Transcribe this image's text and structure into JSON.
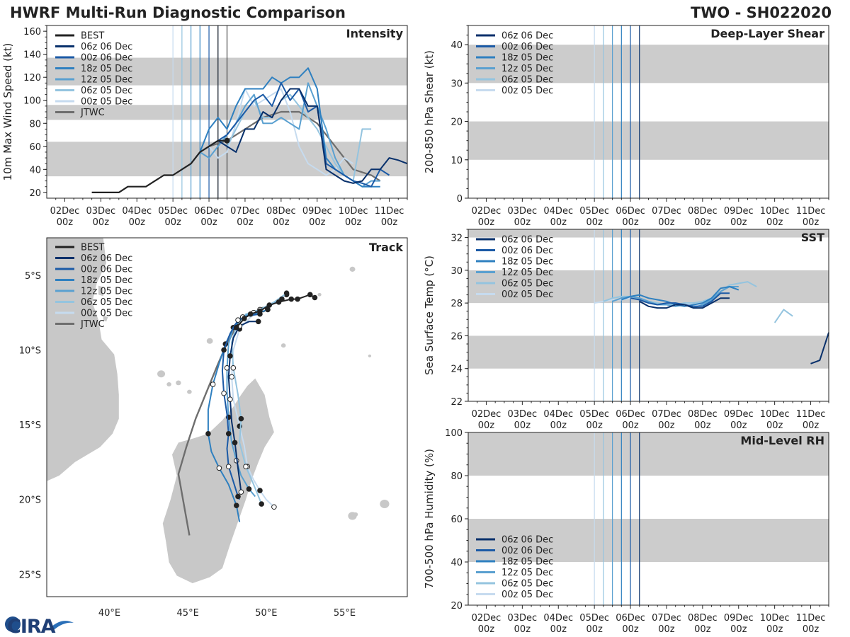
{
  "header": {
    "title": "HWRF Multi-Run Diagnostic Comparison",
    "storm": "TWO - SH022020"
  },
  "logo": {
    "text": "CIRA"
  },
  "colors": {
    "BEST": "#222222",
    "06z 06 Dec": "#08306b",
    "00z 06 Dec": "#1b5aa6",
    "18z 05 Dec": "#2f80c0",
    "12z 05 Dec": "#5aa0d0",
    "06z 05 Dec": "#94c4df",
    "00z 05 Dec": "#c6dbef",
    "JTWC": "#6e6e6e",
    "band": "#cccccc"
  },
  "date_ticks": [
    "02Dec",
    "03Dec",
    "04Dec",
    "05Dec",
    "06Dec",
    "07Dec",
    "08Dec",
    "09Dec",
    "10Dec",
    "11Dec"
  ],
  "date_ticks_sub": "00z",
  "run_lines": [
    {
      "name": "00z 05 Dec",
      "day": 5.0
    },
    {
      "name": "06z 05 Dec",
      "day": 5.25
    },
    {
      "name": "12z 05 Dec",
      "day": 5.5
    },
    {
      "name": "18z 05 Dec",
      "day": 5.75
    },
    {
      "name": "00z 06 Dec",
      "day": 6.0
    },
    {
      "name": "06z 06 Dec",
      "day": 6.25
    }
  ],
  "chart_data": [
    {
      "id": "intensity",
      "type": "line",
      "title": "Intensity",
      "ylabel": "10m Max Wind Speed (kt)",
      "xlim": [
        1.5,
        11.5
      ],
      "ylim": [
        15,
        165
      ],
      "yticks": [
        20,
        40,
        60,
        80,
        100,
        120,
        140,
        160
      ],
      "bands": [
        [
          34,
          64
        ],
        [
          83,
          96
        ],
        [
          113,
          137
        ]
      ],
      "analysis_lines": [
        6.25,
        6.5
      ],
      "legend": [
        "BEST",
        "06z 06 Dec",
        "00z 06 Dec",
        "18z 05 Dec",
        "12z 05 Dec",
        "06z 05 Dec",
        "00z 05 Dec",
        "JTWC"
      ],
      "series": [
        {
          "name": "BEST",
          "x": [
            2.75,
            3.0,
            3.25,
            3.5,
            3.75,
            4.0,
            4.25,
            4.5,
            4.75,
            5.0,
            5.25,
            5.5,
            5.75,
            6.0,
            6.25,
            6.5
          ],
          "y": [
            20,
            20,
            20,
            20,
            25,
            25,
            25,
            30,
            35,
            35,
            40,
            45,
            55,
            60,
            65,
            65
          ],
          "markers": [
            6.5
          ]
        },
        {
          "name": "JTWC",
          "x": [
            6.0,
            6.5,
            7.0,
            7.5,
            8.0,
            8.5,
            9.0,
            9.5,
            10.0,
            10.5,
            10.75
          ],
          "y": [
            60,
            65,
            75,
            85,
            90,
            90,
            80,
            60,
            40,
            35,
            30
          ]
        },
        {
          "name": "00z 05 Dec",
          "x": [
            5.0,
            5.25,
            5.5,
            5.75,
            6.0,
            6.25,
            6.5,
            6.75,
            7.0,
            7.25,
            7.5,
            7.75,
            8.0,
            8.25,
            8.5,
            8.75,
            9.0,
            9.25,
            9.5,
            9.75,
            10.0
          ],
          "y": [
            35,
            40,
            45,
            55,
            60,
            50,
            55,
            80,
            110,
            95,
            100,
            105,
            110,
            90,
            60,
            45,
            40,
            35,
            40,
            50,
            45
          ]
        },
        {
          "name": "06z 05 Dec",
          "x": [
            5.25,
            5.5,
            5.75,
            6.0,
            6.25,
            6.5,
            6.75,
            7.0,
            7.25,
            7.5,
            7.75,
            8.0,
            8.25,
            8.5,
            8.75,
            9.0,
            9.25,
            9.5,
            9.75,
            10.0,
            10.25,
            10.5
          ],
          "y": [
            40,
            45,
            55,
            60,
            65,
            60,
            75,
            90,
            100,
            85,
            85,
            100,
            105,
            95,
            85,
            75,
            60,
            45,
            35,
            30,
            75,
            75
          ]
        },
        {
          "name": "12z 05 Dec",
          "x": [
            5.5,
            5.75,
            6.0,
            6.25,
            6.5,
            6.75,
            7.0,
            7.25,
            7.5,
            7.75,
            8.0,
            8.25,
            8.5,
            8.75,
            9.0,
            9.25,
            9.5,
            9.75,
            10.0,
            10.25,
            10.5,
            10.75
          ],
          "y": [
            45,
            55,
            50,
            60,
            70,
            80,
            95,
            105,
            80,
            80,
            85,
            80,
            75,
            115,
            95,
            75,
            50,
            35,
            30,
            25,
            30,
            30
          ]
        },
        {
          "name": "18z 05 Dec",
          "x": [
            5.75,
            6.0,
            6.25,
            6.5,
            6.75,
            7.0,
            7.25,
            7.5,
            7.75,
            8.0,
            8.25,
            8.5,
            8.75,
            9.0,
            9.25,
            9.5,
            9.75,
            10.0,
            10.25,
            10.5,
            10.75
          ],
          "y": [
            55,
            75,
            85,
            75,
            95,
            110,
            110,
            110,
            120,
            115,
            120,
            120,
            128,
            110,
            50,
            40,
            35,
            30,
            25,
            25,
            25
          ]
        },
        {
          "name": "00z 06 Dec",
          "x": [
            6.0,
            6.25,
            6.5,
            6.75,
            7.0,
            7.25,
            7.5,
            7.75,
            8.0,
            8.25,
            8.5,
            8.75,
            9.0,
            9.25,
            9.5,
            9.75,
            10.0,
            10.25,
            10.5,
            10.75,
            11.0
          ],
          "y": [
            60,
            65,
            70,
            80,
            90,
            100,
            105,
            95,
            115,
            100,
            110,
            90,
            95,
            45,
            40,
            35,
            30,
            28,
            25,
            40,
            35
          ]
        },
        {
          "name": "06z 06 Dec",
          "x": [
            6.25,
            6.5,
            6.75,
            7.0,
            7.25,
            7.5,
            7.75,
            8.0,
            8.25,
            8.5,
            8.75,
            9.0,
            9.25,
            9.5,
            9.75,
            10.0,
            10.25,
            10.5,
            10.75,
            11.0,
            11.25,
            11.5
          ],
          "y": [
            65,
            60,
            55,
            75,
            75,
            90,
            85,
            100,
            110,
            110,
            95,
            95,
            40,
            35,
            30,
            28,
            30,
            40,
            40,
            50,
            48,
            45
          ]
        }
      ]
    },
    {
      "id": "shear",
      "type": "line",
      "title": "Deep-Layer Shear",
      "ylabel": "200-850 hPa Shear (kt)",
      "xlim": [
        1.5,
        11.5
      ],
      "ylim": [
        0,
        45
      ],
      "yticks": [
        0,
        10,
        20,
        30,
        40
      ],
      "bands": [
        [
          10,
          20
        ],
        [
          30,
          40
        ]
      ],
      "legend": [
        "06z 06 Dec",
        "00z 06 Dec",
        "18z 05 Dec",
        "12z 05 Dec",
        "06z 05 Dec",
        "00z 05 Dec"
      ],
      "series": []
    },
    {
      "id": "sst",
      "type": "line",
      "title": "SST",
      "ylabel": "Sea Surface Temp (°C)",
      "xlim": [
        1.5,
        11.5
      ],
      "ylim": [
        22,
        32.5
      ],
      "yticks": [
        22,
        24,
        26,
        28,
        30,
        32
      ],
      "bands": [
        [
          24,
          26
        ],
        [
          28,
          30
        ],
        [
          32,
          32.5
        ]
      ],
      "legend": [
        "06z 06 Dec",
        "00z 06 Dec",
        "18z 05 Dec",
        "12z 05 Dec",
        "06z 05 Dec",
        "00z 05 Dec"
      ],
      "series": [
        {
          "name": "00z 05 Dec",
          "x": [
            5.0,
            5.25,
            5.5,
            5.75,
            6.0,
            6.25,
            6.5,
            6.75,
            7.0,
            7.25,
            7.5,
            7.75,
            8.0
          ],
          "y": [
            28.0,
            28.1,
            28.2,
            28.2,
            28.3,
            28.2,
            28.0,
            27.9,
            27.9,
            27.8,
            27.9,
            27.9,
            27.9
          ]
        },
        {
          "name": "06z 05 Dec",
          "x": [
            5.25,
            5.5,
            5.75,
            6.0,
            6.25,
            6.5,
            6.75,
            7.0,
            7.25,
            7.5,
            7.75,
            8.0,
            8.25,
            8.5,
            8.75,
            9.0,
            9.25,
            9.5,
            9.75,
            10.0,
            10.25,
            10.5
          ],
          "y": [
            28.1,
            28.3,
            28.4,
            28.4,
            28.3,
            28.1,
            28.0,
            27.9,
            27.9,
            28.0,
            28.0,
            28.1,
            28.3,
            28.7,
            29.1,
            29.2,
            29.3,
            29.0,
            null,
            26.8,
            27.6,
            27.2
          ]
        },
        {
          "name": "12z 05 Dec",
          "x": [
            5.5,
            5.75,
            6.0,
            6.25,
            6.5,
            6.75,
            7.0,
            7.25,
            7.5,
            7.75,
            8.0,
            8.25,
            8.5,
            8.75,
            9.0
          ],
          "y": [
            28.1,
            28.3,
            28.4,
            28.3,
            28.1,
            27.9,
            27.9,
            27.8,
            27.9,
            27.7,
            27.9,
            28.2,
            28.7,
            29.0,
            29.0
          ]
        },
        {
          "name": "18z 05 Dec",
          "x": [
            5.75,
            6.0,
            6.25,
            6.5,
            6.75,
            7.0,
            7.25,
            7.5,
            7.75,
            8.0,
            8.25,
            8.5,
            8.75,
            9.0
          ],
          "y": [
            28.2,
            28.4,
            28.5,
            28.3,
            28.2,
            28.1,
            27.9,
            27.8,
            27.9,
            28.0,
            28.3,
            28.9,
            29.0,
            28.8
          ]
        },
        {
          "name": "00z 06 Dec",
          "x": [
            6.0,
            6.25,
            6.5,
            6.75,
            7.0,
            7.25,
            7.5,
            7.75,
            8.0,
            8.25,
            8.5,
            8.75
          ],
          "y": [
            28.3,
            28.2,
            28.0,
            27.9,
            28.0,
            28.0,
            27.9,
            27.8,
            27.8,
            28.1,
            28.6,
            28.6
          ]
        },
        {
          "name": "06z 06 Dec",
          "x": [
            6.25,
            6.5,
            6.75,
            7.0,
            7.25,
            7.5,
            7.75,
            8.0,
            8.25,
            8.5,
            8.75,
            null,
            11.0,
            11.25,
            11.5
          ],
          "y": [
            28.1,
            27.8,
            27.7,
            27.7,
            27.9,
            27.9,
            27.7,
            27.7,
            28.0,
            28.3,
            28.3,
            null,
            24.3,
            24.5,
            26.2
          ]
        }
      ]
    },
    {
      "id": "rh",
      "type": "line",
      "title": "Mid-Level RH",
      "ylabel": "700-500 hPa Humidity (%)",
      "xlim": [
        1.5,
        11.5
      ],
      "ylim": [
        20,
        100
      ],
      "yticks": [
        20,
        40,
        60,
        80,
        100
      ],
      "bands": [
        [
          40,
          60
        ],
        [
          80,
          100
        ]
      ],
      "legend": [
        "06z 06 Dec",
        "00z 06 Dec",
        "18z 05 Dec",
        "12z 05 Dec",
        "06z 05 Dec",
        "00z 05 Dec"
      ],
      "series": []
    },
    {
      "id": "track",
      "type": "map",
      "title": "Track",
      "xlim": [
        36,
        59
      ],
      "ylim": [
        -26.5,
        -2.5
      ],
      "xticks": [
        40,
        45,
        50,
        55
      ],
      "xtick_labels": [
        "40°E",
        "45°E",
        "50°E",
        "55°E"
      ],
      "yticks": [
        -5,
        -10,
        -15,
        -20,
        -25
      ],
      "ytick_labels": [
        "5°S",
        "10°S",
        "15°S",
        "20°S",
        "25°S"
      ],
      "legend": [
        "BEST",
        "06z 06 Dec",
        "00z 06 Dec",
        "18z 05 Dec",
        "12z 05 Dec",
        "06z 05 Dec",
        "00z 05 Dec",
        "JTWC"
      ],
      "tracks": [
        {
          "name": "BEST",
          "lon": [
            53.1,
            52.8,
            52.0,
            51.6,
            50.8,
            50.2,
            49.6,
            49.0,
            48.6,
            48.1
          ],
          "lat": [
            -6.5,
            -6.3,
            -6.6,
            -6.6,
            -6.8,
            -7.0,
            -7.4,
            -7.6,
            -7.9,
            -8.5
          ]
        },
        {
          "name": "JTWC",
          "lon": [
            48.5,
            48.0,
            47.4,
            46.9,
            46.2,
            45.5,
            44.9,
            44.4,
            45.1
          ],
          "lat": [
            -7.9,
            -8.6,
            -9.8,
            -11.0,
            -12.8,
            -14.6,
            -16.5,
            -18.3,
            -22.4
          ]
        },
        {
          "name": "00z 05 Dec",
          "lon": [
            51.3,
            50.6,
            49.8,
            49.0,
            48.3,
            47.9,
            47.8,
            47.9,
            48.3,
            48.6,
            48.8,
            49.2,
            49.6,
            50.0,
            50.5
          ],
          "lat": [
            -6.3,
            -6.8,
            -7.3,
            -7.8,
            -8.6,
            -10.0,
            -11.8,
            -13.3,
            -15.1,
            -16.4,
            -17.8,
            -18.7,
            -19.4,
            -20.0,
            -20.5
          ]
        },
        {
          "name": "06z 05 Dec",
          "lon": [
            51.3,
            50.5,
            49.6,
            48.7,
            48.1,
            47.8,
            47.9,
            48.2,
            48.4,
            48.3,
            48.7,
            49.2,
            49.7
          ],
          "lat": [
            -6.2,
            -6.8,
            -7.3,
            -7.6,
            -8.4,
            -9.5,
            -11.2,
            -13.0,
            -14.6,
            -16.2,
            -17.8,
            -19.0,
            -20.3
          ]
        },
        {
          "name": "12z 05 Dec",
          "lon": [
            51.0,
            50.3,
            49.2,
            48.4,
            47.9,
            47.6,
            47.5,
            47.5,
            47.6,
            47.8,
            48.1,
            48.4,
            48.9,
            49.3
          ],
          "lat": [
            -6.6,
            -7.0,
            -7.5,
            -7.8,
            -8.5,
            -9.6,
            -11.2,
            -12.8,
            -14.5,
            -16.2,
            -17.4,
            -18.4,
            -19.3,
            -19.8
          ]
        },
        {
          "name": "18z 05 Dec",
          "lon": [
            50.1,
            49.3,
            48.5,
            47.9,
            47.4,
            47.0,
            46.6,
            46.3,
            46.3,
            46.5,
            47.0,
            47.6,
            48.1,
            48.3
          ],
          "lat": [
            -7.3,
            -7.6,
            -7.8,
            -8.5,
            -9.6,
            -10.9,
            -12.3,
            -14.0,
            -15.6,
            -16.8,
            -17.9,
            -19.0,
            -20.4,
            -21.5
          ]
        },
        {
          "name": "00z 06 Dec",
          "lon": [
            49.6,
            48.9,
            48.2,
            47.7,
            47.3,
            47.2,
            47.3,
            47.5,
            47.6,
            47.5,
            47.6,
            47.9,
            48.2,
            48.3
          ],
          "lat": [
            -7.6,
            -7.7,
            -8.0,
            -8.9,
            -10.0,
            -11.4,
            -12.9,
            -14.3,
            -15.6,
            -16.6,
            -17.8,
            -18.8,
            -19.8,
            -20.0
          ]
        },
        {
          "name": "06z 06 Dec",
          "lon": [
            49.5,
            48.9,
            48.3,
            47.9,
            47.7,
            47.6,
            47.7,
            47.8,
            48.0,
            48.2,
            48.4
          ],
          "lat": [
            -8.1,
            -8.1,
            -8.4,
            -9.2,
            -10.4,
            -11.8,
            -13.3,
            -14.8,
            -16.2,
            -17.9,
            -19.5
          ]
        }
      ]
    }
  ]
}
